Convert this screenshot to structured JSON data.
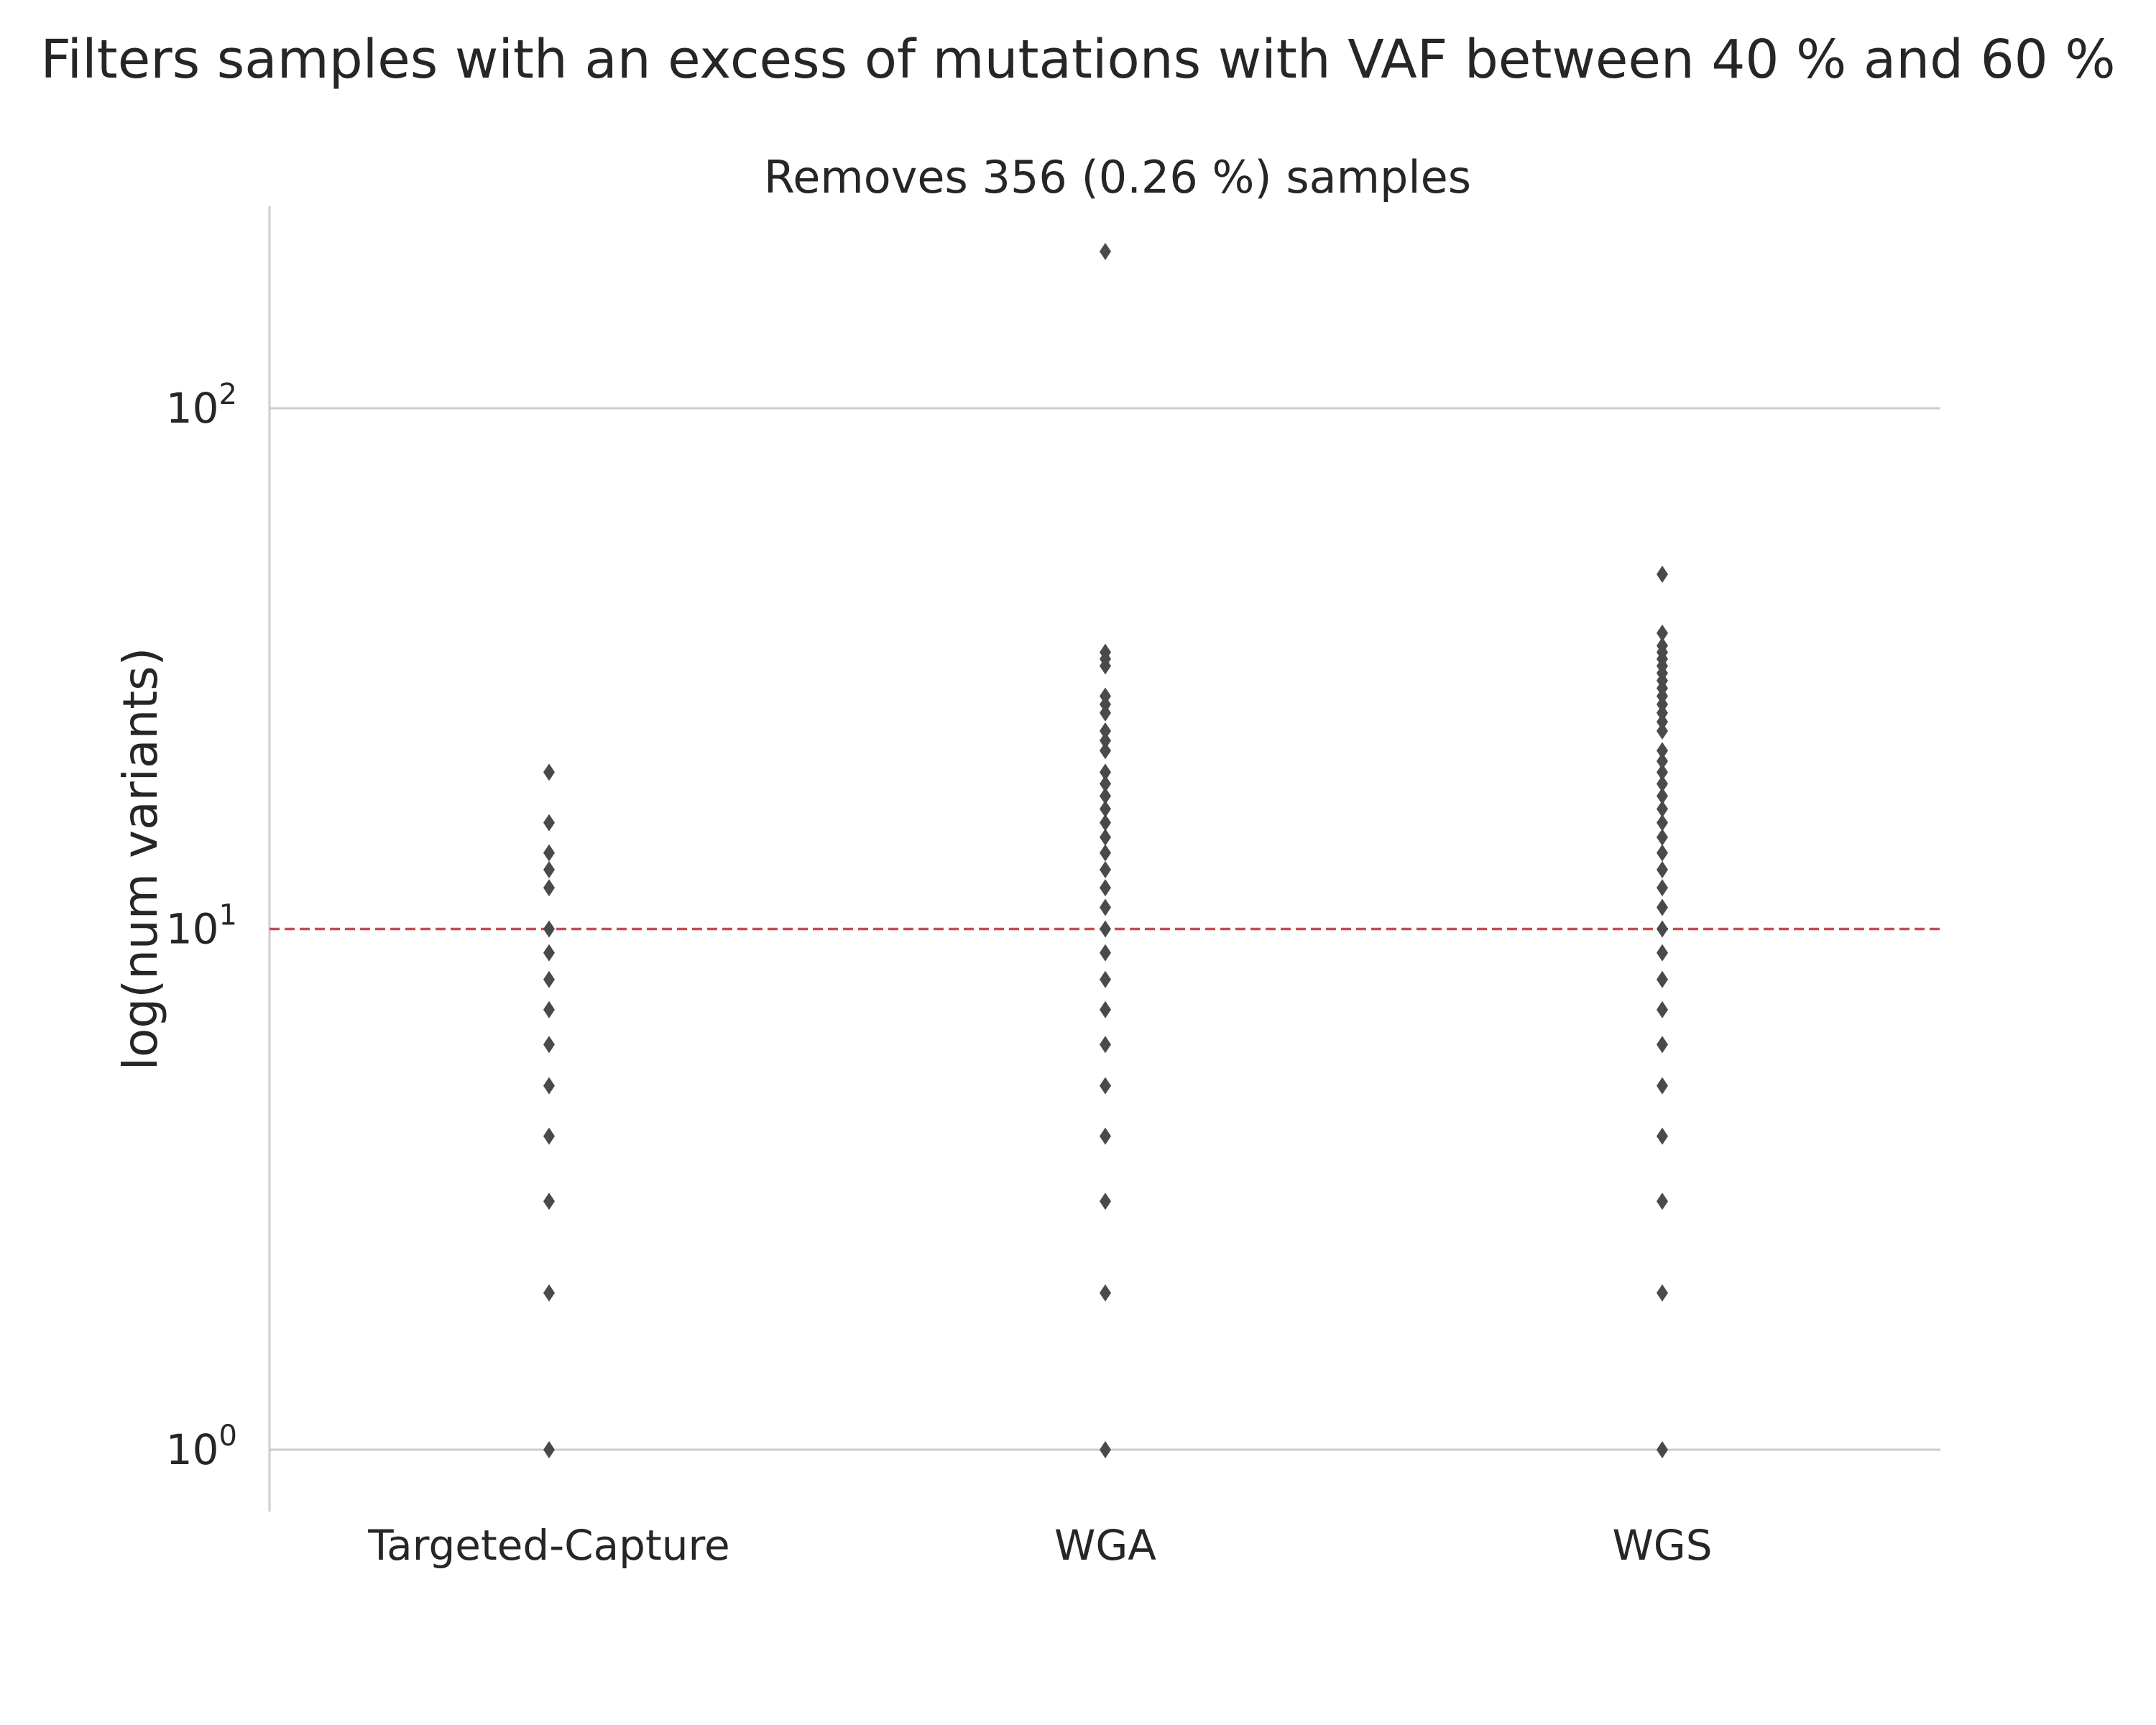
{
  "chart_data": {
    "type": "scatter",
    "suptitle": "Filters samples with an excess of mutations with VAF between 40 % and 60 %",
    "title": "Removes 356 (0.26 %) samples",
    "xlabel": "",
    "ylabel": "log(num variants)",
    "yscale": "log",
    "ylim": [
      0.8,
      250
    ],
    "yticks": [
      {
        "value": 1,
        "base": "10",
        "exp": "0"
      },
      {
        "value": 10,
        "base": "10",
        "exp": "1"
      },
      {
        "value": 100,
        "base": "10",
        "exp": "2"
      }
    ],
    "categories": [
      "Targeted-Capture",
      "WGA",
      "WGS"
    ],
    "threshold": {
      "value": 10,
      "color": "#c44e52",
      "style": "dashed"
    },
    "marker_color": "#4a4a4a",
    "grid_color": "#cccccc",
    "series": [
      {
        "category": "Targeted-Capture",
        "values": [
          1,
          2,
          3,
          4,
          5,
          6,
          7,
          8,
          9,
          10,
          12,
          13,
          14,
          16,
          20
        ]
      },
      {
        "category": "WGA",
        "values": [
          1,
          2,
          3,
          4,
          5,
          6,
          7,
          8,
          9,
          10,
          11,
          12,
          13,
          14,
          15,
          16,
          17,
          18,
          19,
          20,
          22,
          23,
          24,
          26,
          27,
          28,
          32,
          33,
          34,
          200
        ]
      },
      {
        "category": "WGS",
        "values": [
          1,
          2,
          3,
          4,
          5,
          6,
          7,
          8,
          9,
          10,
          11,
          12,
          13,
          14,
          15,
          16,
          17,
          18,
          19,
          20,
          21,
          22,
          24,
          25,
          26,
          27,
          28,
          29,
          30,
          31,
          32,
          33,
          34,
          35,
          37,
          48
        ]
      }
    ]
  }
}
